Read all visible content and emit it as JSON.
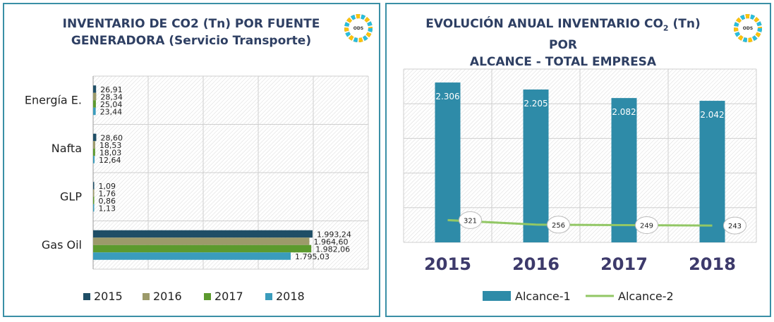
{
  "left_panel": {
    "title_line1": "INVENTARIO DE CO2 (Tn) POR FUENTE",
    "title_line2": "GENERADORA (Servicio Transporte)",
    "logo_text": "ODS"
  },
  "right_panel": {
    "title_line1_pre": "EVOLUCIÓN ANUAL INVENTARIO CO",
    "title_line1_sub": "2",
    "title_line1_post": " (Tn) POR",
    "title_line2": "ALCANCE - TOTAL EMPRESA",
    "logo_text": "ODS"
  },
  "chart_data": [
    {
      "type": "bar",
      "orientation": "horizontal",
      "title": "INVENTARIO DE CO2 (Tn) POR FUENTE GENERADORA (Servicio Transporte)",
      "categories": [
        "Energía E.",
        "Nafta",
        "GLP",
        "Gas Oil"
      ],
      "series": [
        {
          "name": "2015",
          "color": "#1f4e66",
          "values": [
            26.91,
            28.6,
            1.09,
            1993.24
          ],
          "labels": [
            "26,91",
            "28,60",
            "1,09",
            "1.993,24"
          ]
        },
        {
          "name": "2016",
          "color": "#9c9a6a",
          "values": [
            28.34,
            18.53,
            1.76,
            1964.6
          ],
          "labels": [
            "28,34",
            "18,53",
            "1,76",
            "1.964,60"
          ]
        },
        {
          "name": "2017",
          "color": "#5c9a2e",
          "values": [
            25.04,
            18.03,
            0.86,
            1982.06
          ],
          "labels": [
            "25,04",
            "18,03",
            "0,86",
            "1.982,06"
          ]
        },
        {
          "name": "2018",
          "color": "#3a9cbc",
          "values": [
            23.44,
            12.64,
            1.13,
            1795.03
          ],
          "labels": [
            "23,44",
            "12,64",
            "1,13",
            "1.795,03"
          ]
        }
      ],
      "xlim": [
        0,
        2500
      ],
      "grid": true,
      "legend": "bottom"
    },
    {
      "type": "bar",
      "title": "EVOLUCIÓN ANUAL INVENTARIO CO2 (Tn) POR ALCANCE - TOTAL EMPRESA",
      "categories": [
        "2015",
        "2016",
        "2017",
        "2018"
      ],
      "series": [
        {
          "name": "Alcance-1",
          "kind": "bar",
          "color": "#2e8ba8",
          "values": [
            2306,
            2205,
            2082,
            2042
          ],
          "labels": [
            "2.306",
            "2.205",
            "2.082",
            "2.042"
          ]
        },
        {
          "name": "Alcance-2",
          "kind": "line",
          "color": "#92c765",
          "values": [
            321,
            256,
            249,
            243
          ],
          "labels": [
            "321",
            "256",
            "249",
            "243"
          ]
        }
      ],
      "ylim": [
        0,
        2500
      ],
      "grid": true,
      "legend": "bottom"
    }
  ]
}
